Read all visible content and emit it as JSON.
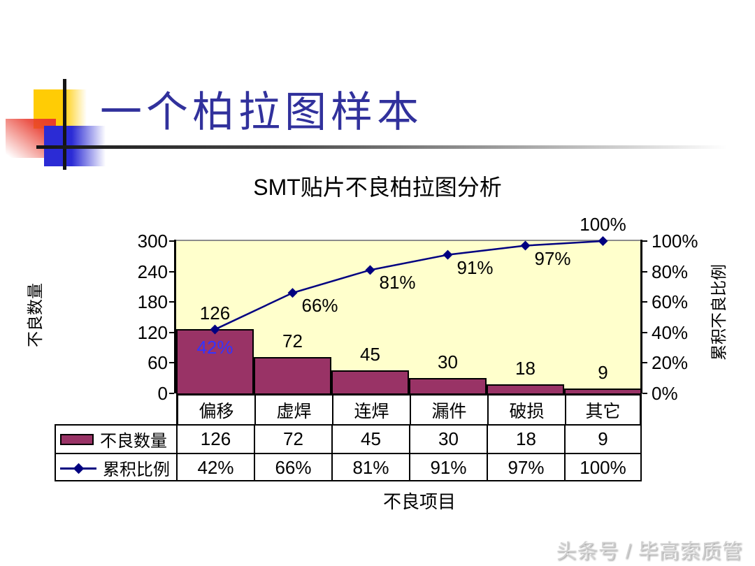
{
  "slide": {
    "title": "一个柏拉图样本",
    "title_color": "#31319c",
    "watermark": "头条号 / 毕高索质管"
  },
  "chart_data": {
    "type": "bar",
    "subtype": "pareto-combo",
    "title": "SMT贴片不良柏拉图分析",
    "categories": [
      "偏移",
      "虚焊",
      "连焊",
      "漏件",
      "破损",
      "其它"
    ],
    "series": [
      {
        "name": "不良数量",
        "type": "bar",
        "values": [
          126,
          72,
          45,
          30,
          18,
          9
        ],
        "color": "#993366"
      },
      {
        "name": "累积比例",
        "type": "line",
        "values": [
          42,
          66,
          81,
          91,
          97,
          100
        ],
        "labels": [
          "42%",
          "66%",
          "81%",
          "91%",
          "97%",
          "100%"
        ],
        "color": "#000080",
        "first_label_color": "#3333ff"
      }
    ],
    "xlabel": "不良项目",
    "axes": {
      "left": {
        "title": "不良数量",
        "min": 0,
        "max": 300,
        "ticks": [
          0,
          60,
          120,
          180,
          240,
          300
        ]
      },
      "right": {
        "title": "累积不良比例",
        "min": 0,
        "max": 100,
        "tick_labels": [
          "0%",
          "20%",
          "40%",
          "60%",
          "80%",
          "100%"
        ]
      }
    },
    "plot_background": "#ffffcc",
    "grid": false,
    "legend_position": "table-left"
  }
}
